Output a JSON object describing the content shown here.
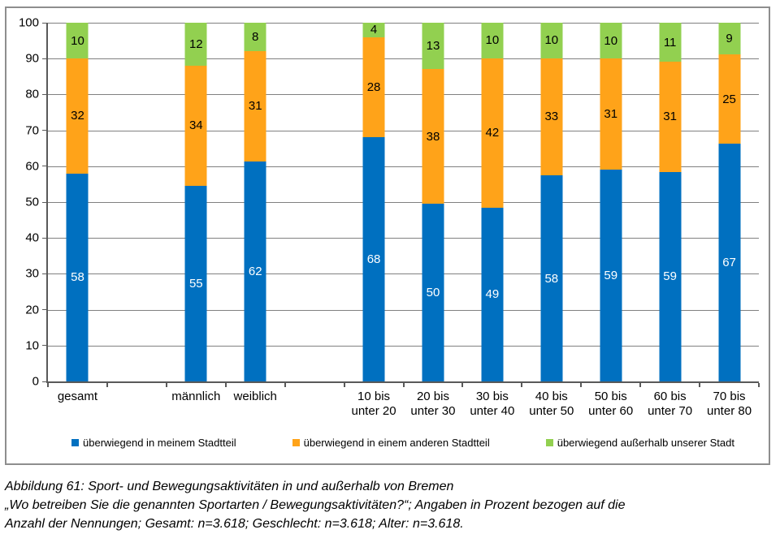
{
  "chart_data": {
    "type": "bar",
    "stacked": true,
    "percent_normalized": true,
    "title": "",
    "ylim": [
      0,
      100
    ],
    "ytick_step": 10,
    "grid": true,
    "legend_position": "bottom",
    "total_slots": 12,
    "categories": [
      {
        "slot": 0,
        "lines": [
          "gesamt"
        ]
      },
      {
        "slot": 2,
        "lines": [
          "männlich"
        ]
      },
      {
        "slot": 3,
        "lines": [
          "weiblich"
        ]
      },
      {
        "slot": 5,
        "lines": [
          "10 bis",
          "unter 20"
        ]
      },
      {
        "slot": 6,
        "lines": [
          "20 bis",
          "unter 30"
        ]
      },
      {
        "slot": 7,
        "lines": [
          "30 bis",
          "unter 40"
        ]
      },
      {
        "slot": 8,
        "lines": [
          "40 bis",
          "unter 50"
        ]
      },
      {
        "slot": 9,
        "lines": [
          "50 bis",
          "unter 60"
        ]
      },
      {
        "slot": 10,
        "lines": [
          "60 bis",
          "unter 70"
        ]
      },
      {
        "slot": 11,
        "lines": [
          "70 bis",
          "unter 80"
        ]
      }
    ],
    "series": [
      {
        "name": "überwiegend in meinem Stadtteil",
        "color": "#0070C0",
        "label_color": "#FFFFFF",
        "values": [
          58,
          55,
          62,
          68,
          50,
          49,
          58,
          59,
          59,
          67
        ]
      },
      {
        "name": "überwiegend in einem anderen Stadtteil",
        "color": "#FFA319",
        "label_color": "#000000",
        "values": [
          32,
          34,
          31,
          28,
          38,
          42,
          33,
          31,
          31,
          25
        ]
      },
      {
        "name": "überwiegend außerhalb unserer Stadt",
        "color": "#92D050",
        "label_color": "#000000",
        "values": [
          10,
          12,
          8,
          4,
          13,
          10,
          10,
          10,
          11,
          9
        ]
      }
    ]
  },
  "caption": {
    "lines": [
      "Abbildung 61: Sport- und Bewegungsaktivitäten in und außerhalb von Bremen",
      "„Wo betreiben Sie die genannten Sportarten / Bewegungsaktivitäten?“; Angaben in Prozent bezogen auf die",
      "Anzahl der Nennungen; Gesamt: n=3.618; Geschlecht: n=3.618; Alter: n=3.618."
    ]
  }
}
